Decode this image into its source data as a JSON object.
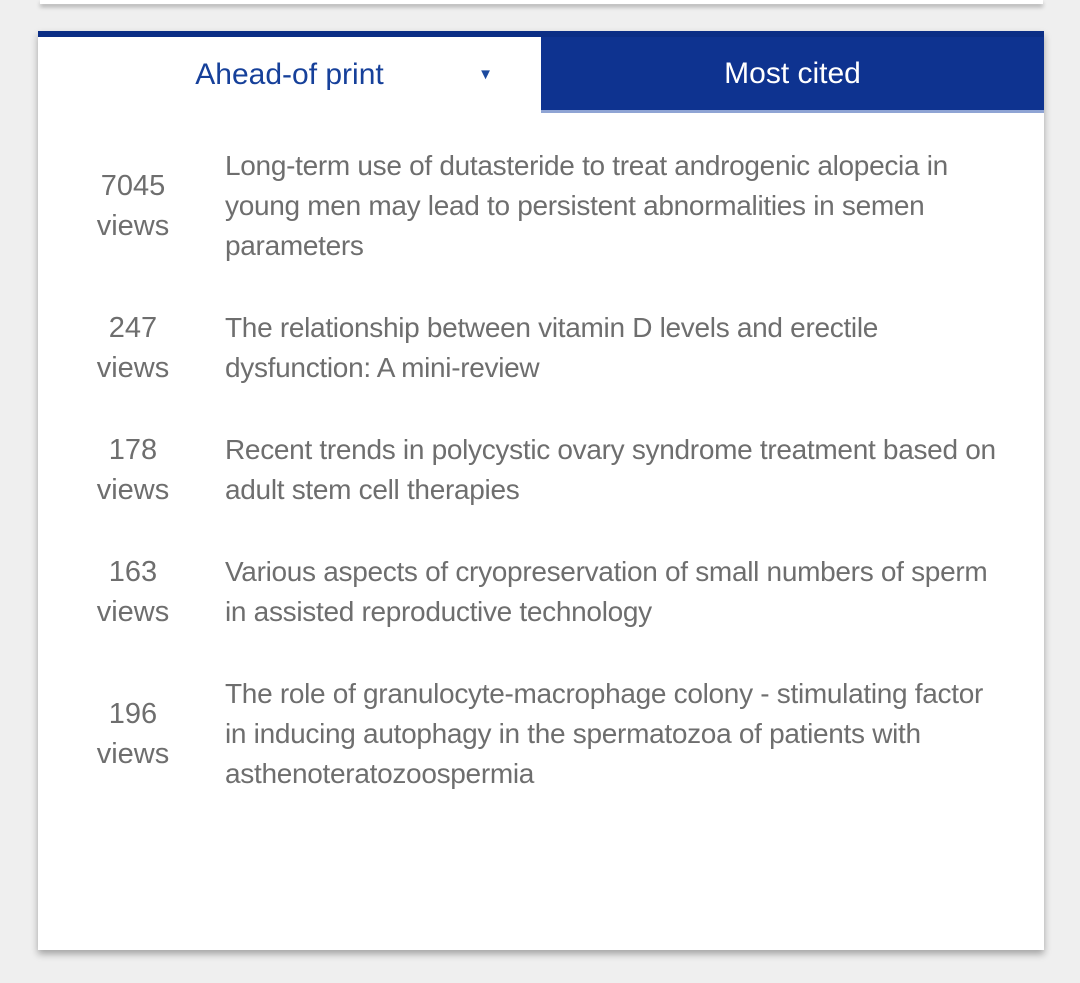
{
  "page": {
    "background_color": "#efefef",
    "accent_blue": "#0e3390",
    "inactive_tab_text_blue": "#16409a",
    "body_text_gray": "#6e6e6e"
  },
  "icons": {
    "dropdown": "▼"
  },
  "tabs": [
    {
      "label": "Ahead-of print",
      "active": false,
      "has_dropdown": true
    },
    {
      "label": "Most cited",
      "active": true
    }
  ],
  "articles": [
    {
      "views": "7045",
      "views_label": "views",
      "title": "Long-term use of dutasteride to treat androgenic alopecia in young men may lead to persistent abnormalities in semen parameters"
    },
    {
      "views": "247",
      "views_label": "views",
      "title": "The relationship between vitamin D levels and erectile dysfunction: A mini-review"
    },
    {
      "views": "178",
      "views_label": "views",
      "title": "Recent trends in polycystic ovary syndrome treatment based on adult stem cell therapies"
    },
    {
      "views": "163",
      "views_label": "views",
      "title": "Various aspects of cryopreservation of small numbers of sperm in assisted reproductive technology"
    },
    {
      "views": "196",
      "views_label": "views",
      "title": "The role of granulocyte-macrophage colony - stimulating factor in inducing autophagy in the spermatozoa of patients with asthenoteratozoospermia"
    }
  ]
}
